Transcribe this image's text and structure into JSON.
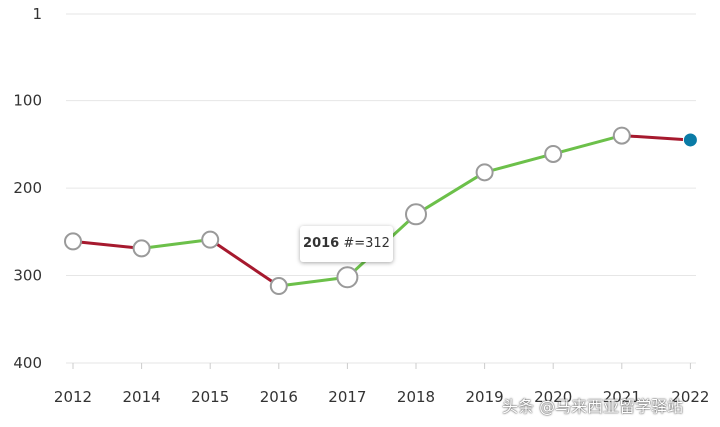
{
  "chart_data": {
    "type": "line",
    "y_axis": {
      "reversed": true,
      "ticks": [
        1,
        100,
        200,
        300,
        400
      ],
      "min": 1,
      "max": 400
    },
    "categories": [
      "2012",
      "2014",
      "2015",
      "2016",
      "2017",
      "2018",
      "2019",
      "2020",
      "2021",
      "2022"
    ],
    "values": [
      261,
      269,
      259,
      312,
      302,
      230,
      182,
      161,
      140,
      145
    ],
    "grid": true,
    "colors": {
      "rising": "#6cc04a",
      "falling": "#a6192e",
      "last_point": "#0a7ba6",
      "marker_stroke": "#9a9a9a",
      "grid": "#e6e6e6"
    },
    "tooltip": {
      "year": "2016",
      "text": "#=312"
    }
  },
  "watermark": "头条 @马来西亚留学驿站"
}
